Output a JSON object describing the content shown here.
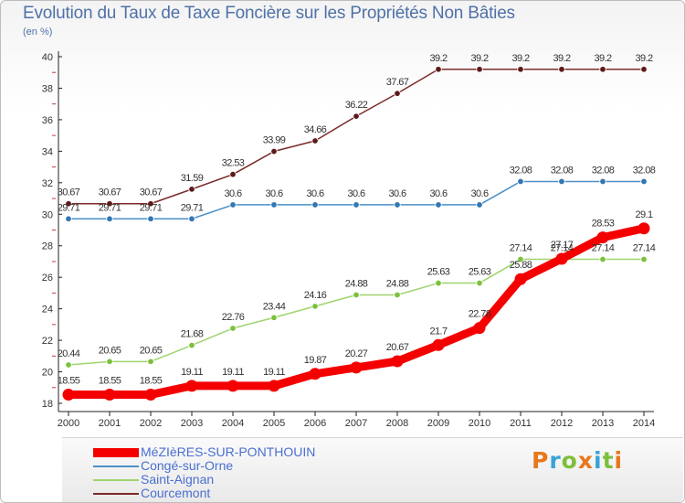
{
  "header": {
    "title": "Evolution du Taux de Taxe Foncière sur les Propriétés Non Bâties",
    "unit": "(en %)"
  },
  "logo": {
    "text": "Proxiti",
    "colors": [
      "#e8771c",
      "#38a3d8",
      "#7dbf3a",
      "#e8771c",
      "#38a3d8",
      "#7dbf3a",
      "#e8771c"
    ]
  },
  "chart_data": {
    "type": "line",
    "title": "Evolution du Taux de Taxe Foncière sur les Propriétés Non Bâties",
    "ylabel": "(en %)",
    "xlabel": "",
    "ylim": [
      18,
      40
    ],
    "yticks": [
      18,
      20,
      22,
      24,
      26,
      28,
      30,
      32,
      34,
      36,
      38,
      40
    ],
    "grid": "none",
    "legend_position": "bottom",
    "x": [
      2000,
      2001,
      2002,
      2003,
      2004,
      2005,
      2006,
      2007,
      2008,
      2009,
      2010,
      2011,
      2012,
      2013,
      2014
    ],
    "series": [
      {
        "name": "Courcemont",
        "color": "#7b2a2a",
        "marker_color": "#5e1a1a",
        "values": [
          30.67,
          30.67,
          30.67,
          31.59,
          32.53,
          33.99,
          34.66,
          36.22,
          37.67,
          39.2,
          39.2,
          39.2,
          39.2,
          39.2,
          39.2
        ],
        "labels": [
          "30.67",
          "30.67",
          "30.67",
          "31.59",
          "32.53",
          "33.99",
          "34.66",
          "36.22",
          "37.67",
          "39.2",
          "39.2",
          "39.2",
          "39.2",
          "39.2",
          "39.2"
        ]
      },
      {
        "name": "Congé-sur-Orne",
        "color": "#4a90c8",
        "marker_color": "#3377b3",
        "values": [
          29.71,
          29.71,
          29.71,
          29.71,
          30.6,
          30.6,
          30.6,
          30.6,
          30.6,
          30.6,
          30.6,
          32.08,
          32.08,
          32.08,
          32.08
        ],
        "labels": [
          "29.71",
          "29.71",
          "29.71",
          "29.71",
          "30.6",
          "30.6",
          "30.6",
          "30.6",
          "30.6",
          "30.6",
          "30.6",
          "32.08",
          "32.08",
          "32.08",
          "32.08"
        ]
      },
      {
        "name": "Saint-Aignan",
        "color": "#9fd46f",
        "marker_color": "#7cc03e",
        "values": [
          20.44,
          20.65,
          20.65,
          21.68,
          22.76,
          23.44,
          24.16,
          24.88,
          24.88,
          25.63,
          25.63,
          27.14,
          27.14,
          27.14,
          27.14
        ],
        "labels": [
          "20.44",
          "20.65",
          "20.65",
          "21.68",
          "22.76",
          "23.44",
          "24.16",
          "24.88",
          "24.88",
          "25.63",
          "25.63",
          "27.14",
          "27.14",
          "27.14",
          "27.14"
        ]
      },
      {
        "name": "MéZIèRES-SUR-PONTHOUIN",
        "color": "#f40000",
        "marker_color": "#f40000",
        "values": [
          18.55,
          18.55,
          18.55,
          19.11,
          19.11,
          19.11,
          19.87,
          20.27,
          20.67,
          21.7,
          22.78,
          25.88,
          27.17,
          28.53,
          29.1
        ],
        "labels": [
          "18.55",
          "18.55",
          "18.55",
          "19.11",
          "19.11",
          "19.11",
          "19.87",
          "20.27",
          "20.67",
          "21.7",
          "22.78",
          "25.88",
          "27.17",
          "28.53",
          "29.1"
        ]
      }
    ]
  },
  "legend": {
    "items": [
      {
        "name": "MéZIèRES-SUR-PONTHOUIN",
        "color": "#f40000",
        "thickness": 10
      },
      {
        "name": "Congé-sur-Orne",
        "color": "#4a90c8",
        "thickness": 2
      },
      {
        "name": "Saint-Aignan",
        "color": "#9fd46f",
        "thickness": 2
      },
      {
        "name": "Courcemont",
        "color": "#7b2a2a",
        "thickness": 2
      }
    ]
  }
}
